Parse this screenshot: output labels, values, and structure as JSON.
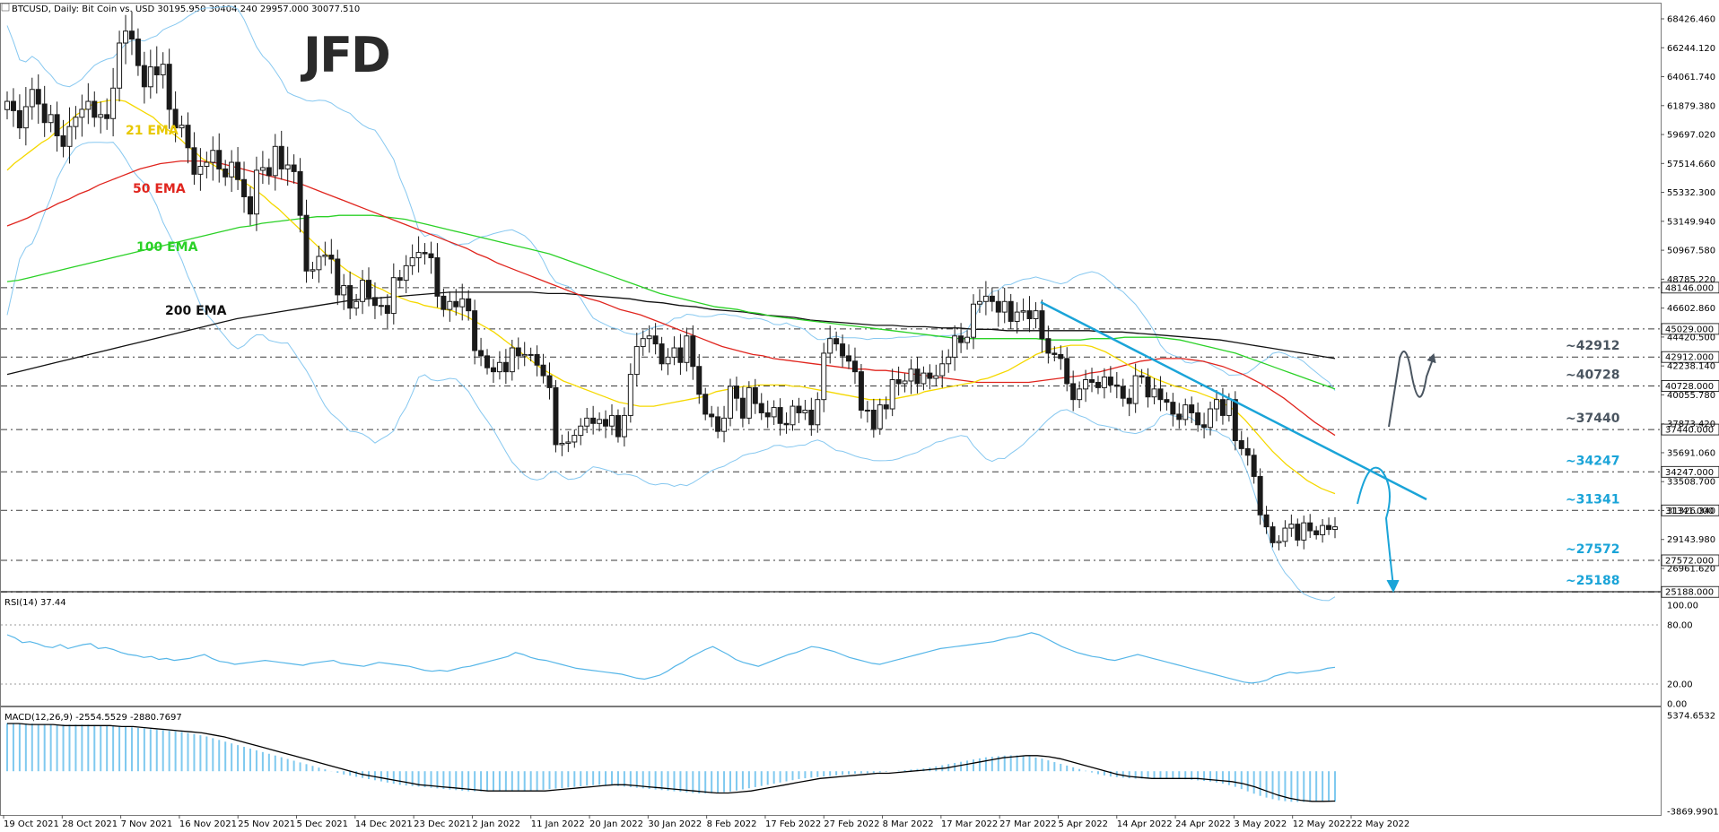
{
  "header": {
    "symbol": "BTCUSD, Daily:  Bit Coin vs. USD  30195.950 30404.240 29957.000 30077.510"
  },
  "logo": "JFD",
  "colors": {
    "ema21": "#f5d800",
    "ema50": "#e0251e",
    "ema100": "#2bd127",
    "ema200": "#111111",
    "bollinger": "#87c8f0",
    "annotation_blue": "#1aa4d8",
    "annotation_dark": "#4a5560",
    "candle": "#1a1a1a",
    "rsi": "#56b6e8",
    "macd_hist": "#7fc9ef",
    "macd_signal": "#000000"
  },
  "ema_labels": [
    {
      "id": "ema21",
      "text": "21 EMA"
    },
    {
      "id": "ema50",
      "text": "50 EMA"
    },
    {
      "id": "ema100",
      "text": "100 EMA"
    },
    {
      "id": "ema200",
      "text": "200 EMA"
    }
  ],
  "price_axis": {
    "ticks": [
      "68426.460",
      "66244.120",
      "64061.740",
      "61879.380",
      "59697.020",
      "57514.660",
      "55332.300",
      "53149.940",
      "50967.580",
      "48785.220",
      "46602.860",
      "44420.500",
      "42238.140",
      "40055.780",
      "37873.420",
      "35691.060",
      "33508.700",
      "31326.340",
      "29143.980",
      "26961.620"
    ],
    "tick_values": [
      68426.46,
      66244.12,
      64061.74,
      61879.38,
      59697.02,
      57514.66,
      55332.3,
      53149.94,
      50967.58,
      48785.22,
      46602.86,
      44420.5,
      42238.14,
      40055.78,
      37873.42,
      35691.06,
      33508.7,
      31326.34,
      29143.98,
      26961.62
    ]
  },
  "levels": [
    {
      "value": 48146,
      "tag": "48146.000",
      "ann": "",
      "color": "dark"
    },
    {
      "value": 45029,
      "tag": "45029.000",
      "ann": "",
      "color": "dark"
    },
    {
      "value": 42912,
      "tag": "42912.000",
      "ann": "~42912",
      "color": "dark"
    },
    {
      "value": 40728,
      "tag": "40728.000",
      "ann": "~40728",
      "color": "dark"
    },
    {
      "value": 37440,
      "tag": "37440.000",
      "ann": "~37440",
      "color": "dark"
    },
    {
      "value": 34247,
      "tag": "34247.000",
      "ann": "~34247",
      "color": "blue"
    },
    {
      "value": 31341,
      "tag": "31341.000",
      "ann": "~31341",
      "color": "blue"
    },
    {
      "value": 27572,
      "tag": "27572.000",
      "ann": "~27572",
      "color": "blue"
    },
    {
      "value": 25188,
      "tag": "25188.000",
      "ann": "~25188",
      "color": "blue"
    }
  ],
  "rsi": {
    "title": "RSI(14) 37.44",
    "ticks": [
      "100.00",
      "80.00",
      "20.00",
      "0.00"
    ],
    "tick_values": [
      100,
      80,
      20,
      0
    ]
  },
  "macd": {
    "title": "MACD(12,26,9) -2554.5529 -2880.7697",
    "ticks": [
      "5374.6532",
      "-3869.9901"
    ],
    "tick_values": [
      5374.6532,
      -3869.9901
    ]
  },
  "date_axis": {
    "labels": [
      "19 Oct 2021",
      "28 Oct 2021",
      "7 Nov 2021",
      "16 Nov 2021",
      "25 Nov 2021",
      "5 Dec 2021",
      "14 Dec 2021",
      "23 Dec 2021",
      "2 Jan 2022",
      "11 Jan 2022",
      "20 Jan 2022",
      "30 Jan 2022",
      "8 Feb 2022",
      "17 Feb 2022",
      "27 Feb 2022",
      "8 Mar 2022",
      "17 Mar 2022",
      "27 Mar 2022",
      "5 Apr 2022",
      "14 Apr 2022",
      "24 Apr 2022",
      "3 May 2022",
      "12 May 2022",
      "22 May 2022"
    ]
  },
  "chart_data": {
    "type": "candlestick",
    "title": "BTCUSD, Daily:  Bit Coin vs. USD  30195.950 30404.240 29957.000 30077.510",
    "ylim": [
      25000,
      69500
    ],
    "indicators": [
      "21 EMA",
      "50 EMA",
      "100 EMA",
      "200 EMA",
      "Bollinger Bands",
      "RSI(14)",
      "MACD(12,26,9)"
    ],
    "horizontal_levels": [
      48146,
      45029,
      42912,
      40728,
      37440,
      34247,
      31341,
      27572,
      25188
    ],
    "close": [
      62200,
      61500,
      60200,
      61800,
      63100,
      62000,
      60600,
      61200,
      59600,
      58800,
      60300,
      61000,
      61600,
      62200,
      61000,
      61200,
      60900,
      63200,
      66600,
      67500,
      66900,
      64900,
      63300,
      64800,
      64200,
      65000,
      61600,
      60200,
      60400,
      58700,
      56700,
      57300,
      57600,
      58500,
      57100,
      56500,
      57600,
      56300,
      55000,
      53700,
      57000,
      57200,
      56600,
      58800,
      57100,
      57400,
      56900,
      53600,
      49400,
      49500,
      50500,
      50600,
      50300,
      47600,
      48300,
      46600,
      47100,
      48700,
      47400,
      46800,
      46800,
      46200,
      48900,
      48700,
      49800,
      50400,
      50800,
      50700,
      50400,
      47500,
      46500,
      47100,
      46700,
      47300,
      46400,
      43400,
      43000,
      42100,
      41800,
      42500,
      41800,
      43600,
      43000,
      43100,
      43100,
      42300,
      41500,
      40600,
      36300,
      36400,
      36500,
      37000,
      37700,
      38300,
      37900,
      38200,
      37700,
      38500,
      36900,
      38500,
      41600,
      43700,
      44300,
      44500,
      43900,
      42400,
      42900,
      43600,
      42500,
      44500,
      42200,
      40100,
      38600,
      38400,
      37300,
      38300,
      40700,
      39800,
      38300,
      40600,
      39400,
      38700,
      38400,
      39100,
      37900,
      37800,
      39200,
      38700,
      38900,
      37800,
      39700,
      43200,
      44300,
      43900,
      43000,
      42600,
      41800,
      38900,
      38900,
      37500,
      39300,
      39000,
      41200,
      40900,
      41100,
      42000,
      40900,
      41700,
      41300,
      41500,
      42400,
      42900,
      44500,
      44000,
      44400,
      46900,
      47100,
      47500,
      47100,
      46300,
      47100,
      45600,
      46300,
      46400,
      45800,
      46400,
      44300,
      43200,
      43100,
      42800,
      40900,
      39700,
      40500,
      41200,
      41000,
      40600,
      41400,
      40800,
      40700,
      39800,
      39400,
      41500,
      41400,
      39900,
      40500,
      39700,
      39500,
      38600,
      38200,
      39300,
      38700,
      37800,
      37600,
      39000,
      39700,
      38500,
      39700,
      36600,
      36000,
      35500,
      33900,
      31000,
      30100,
      28900,
      29000,
      30000,
      30300,
      29100,
      30400,
      29800,
      29500,
      30200,
      29900,
      30100
    ],
    "ema21": [
      57000,
      57500,
      57900,
      58300,
      58700,
      59100,
      59400,
      59900,
      60300,
      60700,
      61200,
      61500,
      61900,
      62100,
      62200,
      62300,
      62300,
      62200,
      61900,
      61600,
      61300,
      61000,
      60500,
      60100,
      59700,
      59300,
      58800,
      58400,
      57900,
      57600,
      57300,
      57000,
      56700,
      56400,
      56100,
      55800,
      55400,
      55000,
      54500,
      54100,
      53600,
      53100,
      52600,
      52100,
      51600,
      51100,
      50600,
      50200,
      49800,
      49400,
      49100,
      48800,
      48500,
      48200,
      48000,
      47700,
      47500,
      47300,
      47100,
      47000,
      46800,
      46700,
      46600,
      46500,
      46400,
      46200,
      46000,
      45700,
      45400,
      45100,
      44800,
      44400,
      44000,
      43600,
      43200,
      42800,
      42400,
      42000,
      41700,
      41400,
      41100,
      40900,
      40700,
      40500,
      40300,
      40100,
      39900,
      39700,
      39500,
      39400,
      39300,
      39200,
      39200,
      39200,
      39300,
      39400,
      39500,
      39600,
      39700,
      39800,
      39900,
      40100,
      40300,
      40400,
      40500,
      40600,
      40700,
      40700,
      40800,
      40800,
      40800,
      40800,
      40800,
      40700,
      40700,
      40600,
      40500,
      40400,
      40300,
      40200,
      40100,
      40000,
      39900,
      39800,
      39700,
      39700,
      39700,
      39700,
      39800,
      39900,
      40000,
      40100,
      40300,
      40400,
      40500,
      40600,
      40700,
      40800,
      40900,
      41000,
      41200,
      41300,
      41500,
      41700,
      41900,
      42200,
      42500,
      42800,
      43100,
      43300,
      43500,
      43600,
      43700,
      43800,
      43800,
      43800,
      43700,
      43500,
      43300,
      43000,
      42700,
      42400,
      42100,
      41800,
      41600,
      41300,
      41100,
      40900,
      40700,
      40600,
      40400,
      40300,
      40100,
      39900,
      39700,
      39400,
      39100,
      38700,
      38200,
      37600,
      37000,
      36400,
      35800,
      35300,
      34800,
      34400,
      34000,
      33600,
      33300,
      33000,
      32800,
      32600
    ],
    "ema50": [
      52800,
      53100,
      53400,
      53800,
      54100,
      54500,
      54800,
      55200,
      55500,
      55900,
      56200,
      56500,
      56800,
      57100,
      57300,
      57500,
      57600,
      57700,
      57700,
      57700,
      57600,
      57500,
      57300,
      57100,
      56900,
      56700,
      56500,
      56300,
      56100,
      55900,
      55600,
      55300,
      55000,
      54700,
      54400,
      54100,
      53800,
      53500,
      53200,
      52900,
      52600,
      52300,
      52000,
      51700,
      51400,
      51100,
      50700,
      50400,
      50000,
      49700,
      49400,
      49100,
      48800,
      48500,
      48200,
      47900,
      47600,
      47300,
      47100,
      46800,
      46500,
      46300,
      46100,
      45800,
      45500,
      45200,
      44900,
      44600,
      44300,
      44000,
      43700,
      43500,
      43300,
      43100,
      43000,
      42800,
      42700,
      42600,
      42500,
      42400,
      42300,
      42200,
      42100,
      42000,
      42000,
      41900,
      41900,
      41800,
      41700,
      41600,
      41500,
      41400,
      41300,
      41200,
      41100,
      41000,
      41000,
      41000,
      41000,
      41000,
      41000,
      41100,
      41200,
      41300,
      41400,
      41500,
      41700,
      41800,
      42000,
      42200,
      42400,
      42600,
      42700,
      42800,
      42800,
      42800,
      42700,
      42600,
      42400,
      42200,
      41900,
      41600,
      41200,
      40800,
      40300,
      39800,
      39200,
      38600,
      38000,
      37500,
      37000
    ],
    "ema100": [
      48600,
      48700,
      48900,
      49100,
      49300,
      49500,
      49700,
      49900,
      50100,
      50300,
      50500,
      50700,
      50900,
      51100,
      51300,
      51500,
      51700,
      51900,
      52100,
      52300,
      52500,
      52700,
      52800,
      53000,
      53100,
      53200,
      53300,
      53400,
      53500,
      53500,
      53600,
      53600,
      53600,
      53600,
      53500,
      53400,
      53300,
      53100,
      52900,
      52700,
      52500,
      52300,
      52100,
      51900,
      51700,
      51500,
      51300,
      51100,
      50900,
      50700,
      50400,
      50100,
      49800,
      49500,
      49200,
      48900,
      48600,
      48300,
      48000,
      47700,
      47500,
      47300,
      47100,
      46900,
      46700,
      46600,
      46500,
      46300,
      46200,
      46000,
      45900,
      45800,
      45700,
      45600,
      45500,
      45400,
      45300,
      45200,
      45100,
      45000,
      44900,
      44800,
      44700,
      44600,
      44500,
      44400,
      44300,
      44300,
      44300,
      44300,
      44300,
      44300,
      44300,
      44300,
      44200,
      44200,
      44200,
      44200,
      44300,
      44300,
      44300,
      44400,
      44400,
      44400,
      44400,
      44300,
      44200,
      44000,
      43800,
      43600,
      43400,
      43200,
      42900,
      42600,
      42300,
      42000,
      41700,
      41400,
      41100,
      40800,
      40500
    ],
    "ema200": [
      41600,
      41900,
      42200,
      42500,
      42800,
      43100,
      43400,
      43700,
      44000,
      44300,
      44600,
      44900,
      45200,
      45500,
      45800,
      46000,
      46200,
      46400,
      46600,
      46800,
      47000,
      47200,
      47300,
      47400,
      47500,
      47600,
      47700,
      47800,
      47800,
      47800,
      47800,
      47800,
      47800,
      47700,
      47700,
      47600,
      47500,
      47400,
      47300,
      47100,
      47000,
      46800,
      46700,
      46500,
      46400,
      46300,
      46100,
      46000,
      45900,
      45700,
      45600,
      45500,
      45400,
      45300,
      45300,
      45200,
      45200,
      45100,
      45100,
      45000,
      45000,
      44900,
      44900,
      44900,
      44900,
      44900,
      44900,
      44800,
      44800,
      44700,
      44600,
      44500,
      44400,
      44300,
      44200,
      44000,
      43800,
      43600,
      43400,
      43200,
      43000,
      42800
    ],
    "rsi14": [
      70,
      67,
      62,
      63,
      61,
      58,
      57,
      60,
      56,
      58,
      60,
      61,
      56,
      57,
      55,
      52,
      50,
      49,
      47,
      48,
      45,
      46,
      44,
      45,
      46,
      48,
      50,
      46,
      43,
      42,
      40,
      41,
      42,
      43,
      44,
      43,
      42,
      41,
      40,
      39,
      41,
      42,
      43,
      44,
      41,
      40,
      39,
      38,
      40,
      42,
      41,
      40,
      39,
      38,
      36,
      34,
      33,
      34,
      33,
      35,
      37,
      38,
      40,
      42,
      44,
      46,
      48,
      52,
      50,
      47,
      45,
      44,
      42,
      40,
      38,
      36,
      35,
      34,
      33,
      32,
      31,
      30,
      28,
      26,
      25,
      27,
      29,
      33,
      38,
      42,
      47,
      51,
      55,
      58,
      54,
      50,
      45,
      42,
      40,
      38,
      41,
      44,
      47,
      50,
      52,
      55,
      58,
      57,
      55,
      53,
      50,
      47,
      45,
      43,
      41,
      40,
      42,
      44,
      46,
      48,
      50,
      52,
      54,
      56,
      57,
      58,
      59,
      60,
      61,
      62,
      63,
      65,
      67,
      68,
      70,
      72,
      70,
      66,
      62,
      58,
      55,
      52,
      50,
      48,
      47,
      45,
      44,
      46,
      48,
      50,
      48,
      46,
      44,
      42,
      40,
      38,
      36,
      34,
      32,
      30,
      28,
      26,
      24,
      22,
      21,
      22,
      24,
      28,
      30,
      32,
      31,
      32,
      33,
      34,
      36,
      37
    ],
    "macd_signal": [
      4600,
      4600,
      4500,
      4500,
      4500,
      4400,
      4400,
      4400,
      4400,
      4400,
      4300,
      4300,
      4200,
      4100,
      4000,
      3900,
      3800,
      3700,
      3500,
      3300,
      3000,
      2700,
      2400,
      2100,
      1800,
      1500,
      1200,
      900,
      600,
      300,
      0,
      -300,
      -500,
      -700,
      -900,
      -1100,
      -1300,
      -1400,
      -1500,
      -1600,
      -1700,
      -1800,
      -1900,
      -1900,
      -1900,
      -1900,
      -1900,
      -1900,
      -1800,
      -1700,
      -1600,
      -1500,
      -1400,
      -1300,
      -1300,
      -1400,
      -1500,
      -1600,
      -1700,
      -1800,
      -1900,
      -2000,
      -2100,
      -2100,
      -2000,
      -1900,
      -1700,
      -1500,
      -1300,
      -1100,
      -900,
      -700,
      -600,
      -500,
      -400,
      -300,
      -200,
      -200,
      -100,
      0,
      100,
      200,
      300,
      500,
      700,
      900,
      1100,
      1300,
      1400,
      1500,
      1500,
      1400,
      1200,
      900,
      600,
      300,
      0,
      -300,
      -500,
      -600,
      -700,
      -700,
      -700,
      -700,
      -700,
      -800,
      -900,
      -1000,
      -1200,
      -1500,
      -1900,
      -2300,
      -2600,
      -2800,
      -2900,
      -2900,
      -2880
    ]
  }
}
